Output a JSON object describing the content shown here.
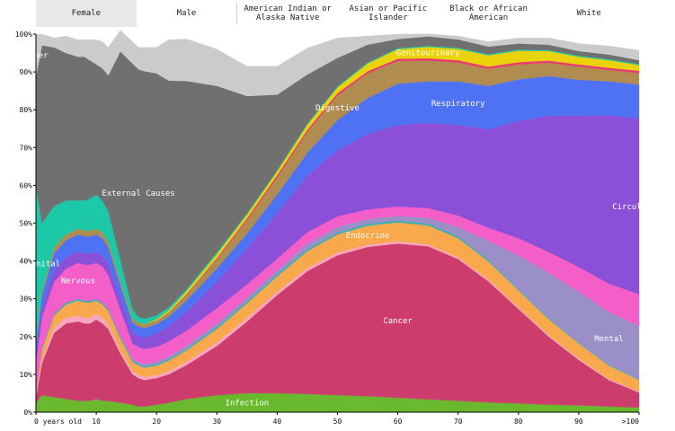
{
  "tabs": [
    {
      "label": "Female",
      "active": true
    },
    {
      "label": "Male",
      "active": false
    },
    {
      "label": "American Indian or\nAlaska Native",
      "active": false
    },
    {
      "label": "Asian or Pacific\nIslander",
      "active": false
    },
    {
      "label": "Black or African\nAmerican",
      "active": false
    },
    {
      "label": "White",
      "active": false
    }
  ],
  "chart_data": {
    "type": "area",
    "stacked": true,
    "xlabel": "",
    "ylabel": "",
    "x_ticks": [
      "0 years old",
      "10",
      "20",
      "30",
      "40",
      "50",
      "60",
      "70",
      "80",
      "90",
      ">100"
    ],
    "y_ticks": [
      "0%",
      "10%",
      "20%",
      "30%",
      "40%",
      "50%",
      "60%",
      "70%",
      "80%",
      "90%",
      "100%"
    ],
    "xlim": [
      0,
      100
    ],
    "ylim": [
      0,
      100
    ],
    "x": [
      0,
      1,
      3,
      5,
      7,
      8,
      9,
      10,
      11,
      12,
      14,
      16,
      17,
      18,
      20,
      22,
      25,
      30,
      35,
      40,
      45,
      50,
      55,
      60,
      65,
      70,
      75,
      80,
      85,
      90,
      95,
      100
    ],
    "series": [
      {
        "name": "Infection",
        "color": "#6ab82e",
        "values": [
          2.5,
          4.5,
          4.0,
          3.5,
          3.0,
          3.0,
          3.0,
          3.5,
          3.0,
          3.0,
          2.5,
          2.0,
          1.5,
          1.5,
          2.0,
          2.5,
          3.5,
          4.5,
          5.0,
          5.0,
          4.8,
          4.5,
          4.2,
          3.8,
          3.4,
          3.0,
          2.6,
          2.3,
          2.0,
          1.8,
          1.5,
          1.2
        ]
      },
      {
        "name": "Cancer",
        "color": "#cc3d6d",
        "values": [
          1.5,
          8.5,
          17.0,
          20.0,
          21.0,
          20.5,
          20.5,
          21.0,
          20.5,
          19.0,
          13.0,
          8.0,
          7.5,
          7.0,
          7.0,
          7.5,
          9.0,
          13.0,
          19.0,
          26.0,
          32.5,
          37.0,
          39.5,
          40.8,
          40.5,
          37.5,
          32.0,
          25.0,
          18.0,
          12.0,
          7.0,
          4.0
        ]
      },
      {
        "name": "",
        "color": "#f7a8bf",
        "values": [
          0.5,
          1.0,
          1.5,
          1.5,
          1.5,
          1.5,
          1.5,
          1.5,
          1.5,
          1.3,
          1.0,
          0.8,
          0.8,
          0.8,
          0.8,
          0.8,
          0.9,
          1.0,
          1.0,
          0.9,
          0.8,
          0.7,
          0.6,
          0.6,
          0.5,
          0.5,
          0.5,
          0.4,
          0.4,
          0.4,
          0.3,
          0.3
        ]
      },
      {
        "name": "Endocrine",
        "color": "#f9a94b",
        "values": [
          0.5,
          2.5,
          3.0,
          3.5,
          4.0,
          4.0,
          4.0,
          3.5,
          3.5,
          3.5,
          3.0,
          2.5,
          2.5,
          2.5,
          2.5,
          2.8,
          3.0,
          3.5,
          3.8,
          4.0,
          4.5,
          4.8,
          5.0,
          5.0,
          5.0,
          5.0,
          4.8,
          4.5,
          4.2,
          4.0,
          3.5,
          3.0
        ]
      },
      {
        "name": "",
        "color": "#3ab0b0",
        "values": [
          0.3,
          0.5,
          0.5,
          0.5,
          0.5,
          0.5,
          0.5,
          0.5,
          0.5,
          0.5,
          0.5,
          0.4,
          0.4,
          0.4,
          0.4,
          0.4,
          0.4,
          0.5,
          0.5,
          0.5,
          0.5,
          0.5,
          0.5,
          0.5,
          0.5,
          0.5,
          0.4,
          0.3,
          0.3,
          0.2,
          0.2,
          0.2
        ]
      },
      {
        "name": "Mental",
        "color": "#9b8fc8",
        "values": [
          0.0,
          0.0,
          0.0,
          0.0,
          0.0,
          0.0,
          0.0,
          0.0,
          0.0,
          0.0,
          0.2,
          0.5,
          0.5,
          0.5,
          0.6,
          0.7,
          0.8,
          1.0,
          1.0,
          1.2,
          1.5,
          1.5,
          1.3,
          1.2,
          1.5,
          2.5,
          5.0,
          9.0,
          12.0,
          13.5,
          14.0,
          14.0
        ]
      },
      {
        "name": "Nervous",
        "color": "#f45ec9",
        "values": [
          8.0,
          8.0,
          8.5,
          9.0,
          9.5,
          9.5,
          9.5,
          9.5,
          9.5,
          9.0,
          7.0,
          4.0,
          4.0,
          4.0,
          4.0,
          4.0,
          4.0,
          4.0,
          3.5,
          3.0,
          3.0,
          2.8,
          2.5,
          2.5,
          2.6,
          3.0,
          3.5,
          4.5,
          5.5,
          6.5,
          7.5,
          8.5
        ]
      },
      {
        "name": "Circulatory",
        "color": "#8b4fd8",
        "values": [
          2.0,
          2.5,
          3.0,
          3.0,
          3.0,
          3.0,
          3.0,
          3.0,
          3.0,
          3.0,
          3.0,
          3.0,
          3.0,
          3.0,
          3.5,
          4.0,
          5.0,
          7.0,
          9.5,
          12.0,
          15.0,
          17.5,
          20.0,
          21.5,
          22.5,
          24.0,
          26.0,
          31.0,
          36.0,
          40.0,
          44.5,
          46.5
        ]
      },
      {
        "name": "Respiratory",
        "color": "#4f72f5",
        "values": [
          3.0,
          3.5,
          4.5,
          4.5,
          4.5,
          4.5,
          4.5,
          4.5,
          4.5,
          4.3,
          3.5,
          2.5,
          2.5,
          2.5,
          2.5,
          2.5,
          3.0,
          3.5,
          4.0,
          5.0,
          6.0,
          8.0,
          9.5,
          11.0,
          11.0,
          11.5,
          11.5,
          11.0,
          10.5,
          9.5,
          9.0,
          9.0
        ]
      },
      {
        "name": "Digestive",
        "color": "#b08c50",
        "values": [
          0.5,
          1.0,
          1.5,
          1.5,
          1.5,
          1.5,
          1.5,
          1.5,
          1.5,
          1.5,
          1.2,
          1.0,
          1.0,
          1.0,
          1.0,
          1.2,
          1.5,
          2.5,
          3.5,
          4.5,
          5.5,
          6.5,
          6.5,
          6.0,
          5.5,
          5.0,
          4.5,
          4.0,
          3.5,
          3.5,
          3.0,
          3.0
        ]
      },
      {
        "name": "",
        "color": "#e83c6e",
        "values": [
          0.0,
          0.0,
          0.0,
          0.0,
          0.0,
          0.0,
          0.0,
          0.0,
          0.0,
          0.0,
          0.0,
          0.0,
          0.0,
          0.0,
          0.0,
          0.0,
          0.2,
          0.3,
          0.5,
          0.6,
          0.6,
          0.6,
          0.6,
          0.6,
          0.6,
          0.6,
          0.6,
          0.6,
          0.6,
          0.6,
          0.6,
          0.6
        ]
      },
      {
        "name": "Genitourinary",
        "color": "#ead30a",
        "values": [
          0.0,
          0.0,
          0.0,
          0.0,
          0.0,
          0.0,
          0.0,
          0.0,
          0.0,
          0.0,
          0.0,
          0.0,
          0.0,
          0.0,
          0.3,
          0.5,
          0.8,
          1.0,
          1.0,
          1.0,
          1.3,
          1.5,
          2.0,
          2.5,
          3.0,
          3.0,
          3.0,
          3.0,
          2.5,
          2.0,
          2.0,
          1.5
        ]
      },
      {
        "name": "Congenital",
        "color": "#1cc8a8",
        "values": [
          41.0,
          18.0,
          11.0,
          9.0,
          7.5,
          8.0,
          8.5,
          9.0,
          8.5,
          8.0,
          5.5,
          2.5,
          1.5,
          1.5,
          1.0,
          0.8,
          0.5,
          0.5,
          0.3,
          0.3,
          0.3,
          0.3,
          0.3,
          0.3,
          0.3,
          0.3,
          0.3,
          0.3,
          0.3,
          0.3,
          0.3,
          0.3
        ]
      },
      {
        "name": "External Causes",
        "color": "#707070",
        "values": [
          29.0,
          47.0,
          42.0,
          39.0,
          38.0,
          38.0,
          36.5,
          34.5,
          35.0,
          36.0,
          55.0,
          65.0,
          65.5,
          65.5,
          64.0,
          60.0,
          55.0,
          44.0,
          31.0,
          20.0,
          13.0,
          7.5,
          4.7,
          2.4,
          2.5,
          2.2,
          2.0,
          1.6,
          1.4,
          1.2,
          1.2,
          1.0
        ]
      },
      {
        "name": "Other",
        "color": "#cbcbcb",
        "values": [
          11.2,
          3.0,
          2.5,
          4.5,
          4.5,
          4.5,
          5.5,
          6.5,
          7.0,
          7.4,
          5.6,
          5.8,
          5.8,
          6.3,
          6.9,
          10.8,
          11.1,
          9.7,
          7.9,
          7.5,
          7.0,
          5.3,
          2.3,
          1.3,
          0.7,
          0.9,
          1.3,
          1.5,
          1.8,
          2.0,
          2.3,
          2.6
        ]
      }
    ]
  }
}
